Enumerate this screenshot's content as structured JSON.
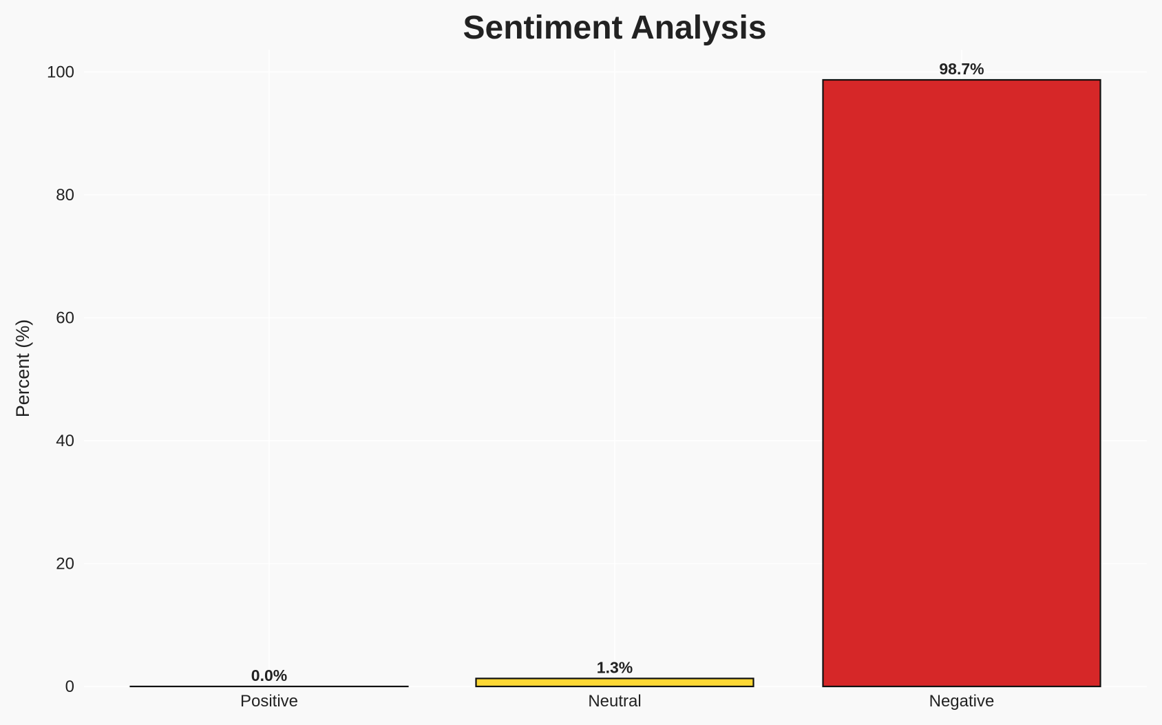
{
  "chart_data": {
    "type": "bar",
    "title": "Sentiment Analysis",
    "xlabel": "",
    "ylabel": "Percent (%)",
    "categories": [
      "Positive",
      "Neutral",
      "Negative"
    ],
    "values": [
      0.0,
      1.3,
      98.7
    ],
    "data_labels": [
      "0.0%",
      "1.3%",
      "98.7%"
    ],
    "colors": [
      "#2ca02c",
      "#fdd835",
      "#d62728"
    ],
    "edge_color": "#111111",
    "ylim": [
      0,
      103.6
    ],
    "yticks": [
      0,
      20,
      40,
      60,
      80,
      100
    ],
    "grid": true,
    "background": "#f9f9f9"
  }
}
